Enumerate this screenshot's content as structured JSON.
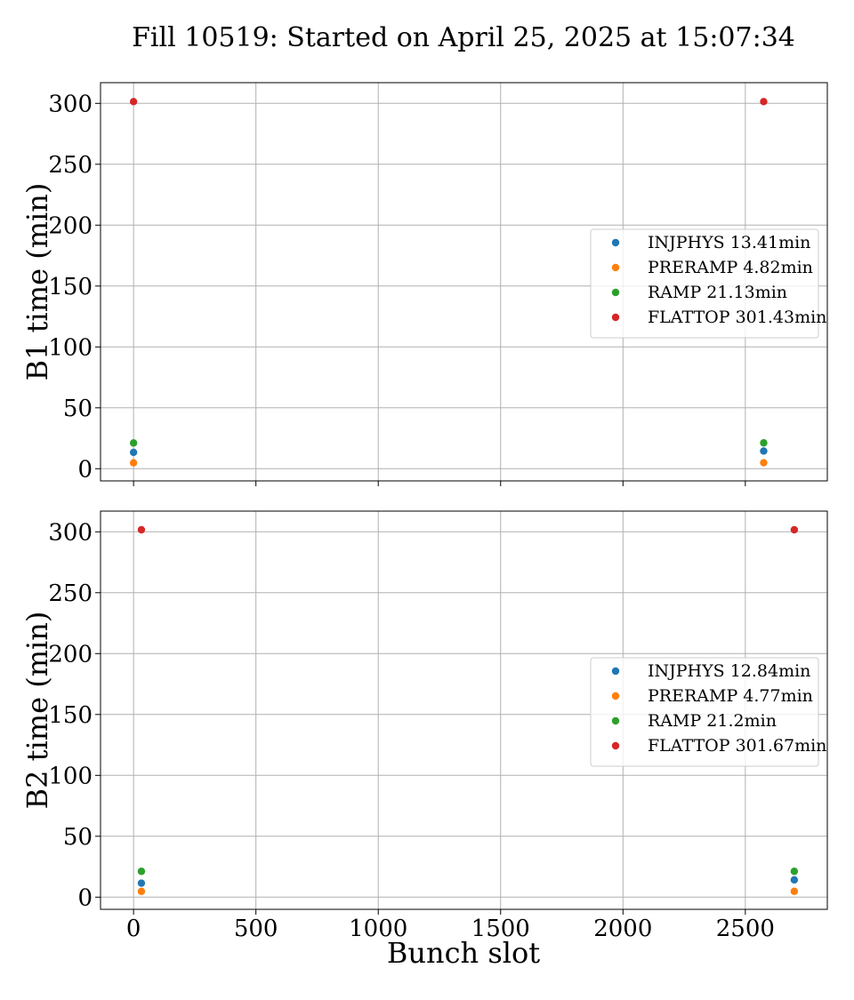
{
  "chart_data": {
    "type": "scatter",
    "title": "Fill 10519: Started on April 25, 2025 at 15:07:34",
    "xlabel": "Bunch slot",
    "xlim": [
      -135,
      2835
    ],
    "xticks": [
      0,
      500,
      1000,
      1500,
      2000,
      2500
    ],
    "grid": true,
    "subplots": [
      {
        "ylabel": "B1 time (min)",
        "ylim": [
          -10,
          317
        ],
        "yticks": [
          0,
          50,
          100,
          150,
          200,
          250,
          300
        ],
        "legend_location": "center right",
        "series": [
          {
            "name": "INJPHYS 13.41min",
            "color": "#1f77b4",
            "x": [
              0,
              2575
            ],
            "y": [
              13.41,
              14.5
            ]
          },
          {
            "name": "PRERAMP 4.82min",
            "color": "#ff7f0e",
            "x": [
              0,
              2575
            ],
            "y": [
              4.82,
              4.9
            ]
          },
          {
            "name": "RAMP 21.13min",
            "color": "#2ca02c",
            "x": [
              0,
              2575
            ],
            "y": [
              21.13,
              21.2
            ]
          },
          {
            "name": "FLATTOP 301.43min",
            "color": "#d62728",
            "x": [
              0,
              2575
            ],
            "y": [
              301.43,
              301.43
            ]
          }
        ]
      },
      {
        "ylabel": "B2 time (min)",
        "ylim": [
          -10,
          317
        ],
        "yticks": [
          0,
          50,
          100,
          150,
          200,
          250,
          300
        ],
        "legend_location": "center right",
        "series": [
          {
            "name": "INJPHYS 12.84min",
            "color": "#1f77b4",
            "x": [
              32,
              2700
            ],
            "y": [
              11.5,
              14.2
            ]
          },
          {
            "name": "PRERAMP 4.77min",
            "color": "#ff7f0e",
            "x": [
              32,
              2700
            ],
            "y": [
              4.77,
              4.8
            ]
          },
          {
            "name": "RAMP 21.2min",
            "color": "#2ca02c",
            "x": [
              32,
              2700
            ],
            "y": [
              21.2,
              21.2
            ]
          },
          {
            "name": "FLATTOP 301.67min",
            "color": "#d62728",
            "x": [
              32,
              2700
            ],
            "y": [
              301.67,
              301.67
            ]
          }
        ]
      }
    ]
  }
}
